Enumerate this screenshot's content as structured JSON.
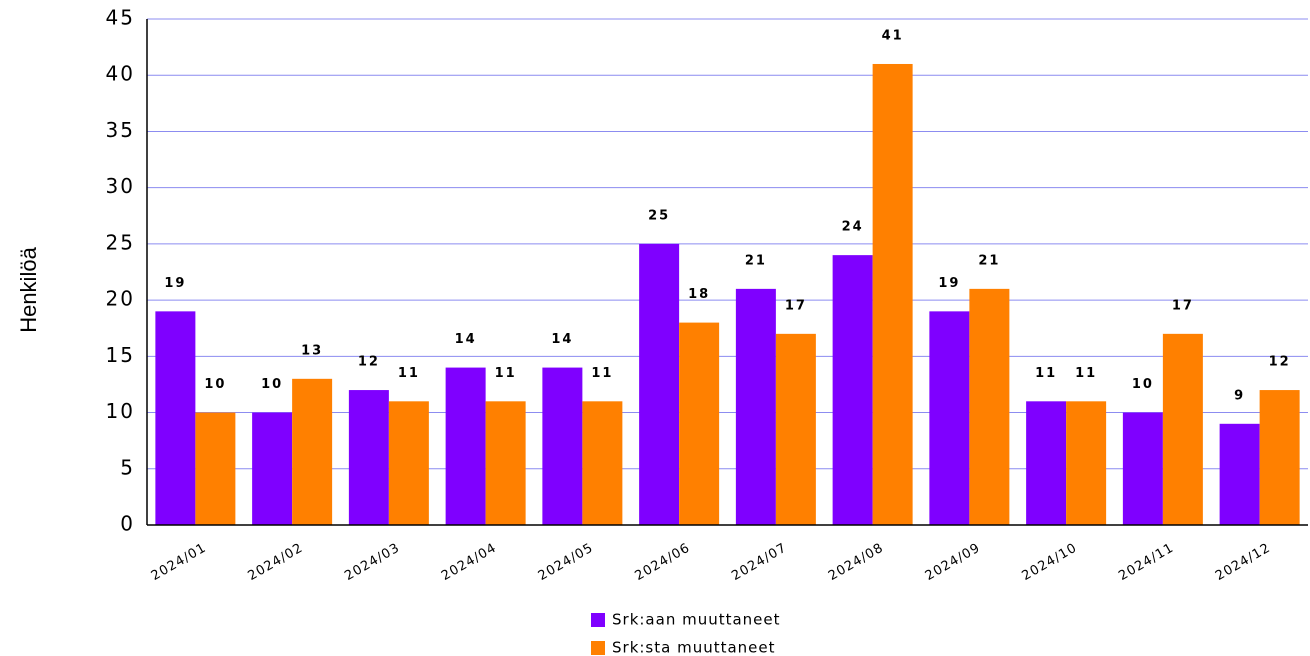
{
  "chart_data": {
    "type": "bar",
    "y_label": "Henkilöä",
    "categories": [
      "2024/01",
      "2024/02",
      "2024/03",
      "2024/04",
      "2024/05",
      "2024/06",
      "2024/07",
      "2024/08",
      "2024/09",
      "2024/10",
      "2024/11",
      "2024/12"
    ],
    "series": [
      {
        "name": "Srk:aan muuttaneet",
        "color": "#7f00ff",
        "values": [
          19,
          10,
          12,
          14,
          14,
          25,
          21,
          24,
          19,
          11,
          10,
          9
        ]
      },
      {
        "name": "Srk:sta muuttaneet",
        "color": "#ff8000",
        "values": [
          10,
          13,
          11,
          11,
          11,
          18,
          17,
          41,
          21,
          11,
          17,
          12
        ]
      }
    ],
    "ylim": [
      0,
      45
    ],
    "yticks": [
      0,
      5,
      10,
      15,
      20,
      25,
      30,
      35,
      40,
      45
    ],
    "grid": true,
    "legend": "bottom"
  }
}
